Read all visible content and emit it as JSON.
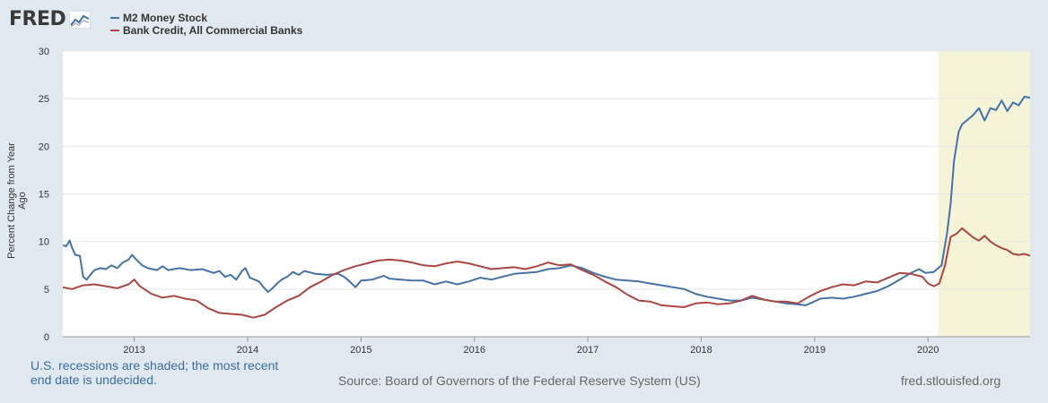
{
  "logo": {
    "text": "FRED"
  },
  "legend": [
    {
      "label": "M2 Money Stock",
      "color": "#4572a7"
    },
    {
      "label": "Bank Credit, All Commercial Banks",
      "color": "#aa4643"
    }
  ],
  "footer": {
    "recession_note": "U.S. recessions are shaded; the most recent end date is undecided.",
    "source": "Source: Board of Governors of the Federal Reserve System (US)",
    "url": "fred.stlouisfed.org"
  },
  "chart_data": {
    "type": "line",
    "title": "",
    "xlabel": "",
    "ylabel": "Percent Change from Year Ago",
    "xlim": [
      2012.37,
      2020.9
    ],
    "ylim": [
      0,
      30
    ],
    "yticks": [
      0,
      5,
      10,
      15,
      20,
      25,
      30
    ],
    "xticks": [
      {
        "value": 2013,
        "label": "2013"
      },
      {
        "value": 2014,
        "label": "2014"
      },
      {
        "value": 2015,
        "label": "2015"
      },
      {
        "value": 2016,
        "label": "2016"
      },
      {
        "value": 2017,
        "label": "2017"
      },
      {
        "value": 2018,
        "label": "2018"
      },
      {
        "value": 2019,
        "label": "2019"
      },
      {
        "value": 2020,
        "label": "2020"
      }
    ],
    "recession_shading": {
      "start": 2020.09,
      "end": 2020.9,
      "color": "#f5f3d8"
    },
    "series": [
      {
        "name": "M2 Money Stock",
        "color": "#4572a7",
        "points": [
          [
            2012.37,
            9.6
          ],
          [
            2012.4,
            9.5
          ],
          [
            2012.43,
            10.1
          ],
          [
            2012.45,
            9.4
          ],
          [
            2012.48,
            8.6
          ],
          [
            2012.52,
            8.5
          ],
          [
            2012.55,
            6.3
          ],
          [
            2012.58,
            6.0
          ],
          [
            2012.62,
            6.6
          ],
          [
            2012.65,
            7.0
          ],
          [
            2012.7,
            7.2
          ],
          [
            2012.75,
            7.1
          ],
          [
            2012.8,
            7.5
          ],
          [
            2012.85,
            7.2
          ],
          [
            2012.9,
            7.8
          ],
          [
            2012.95,
            8.1
          ],
          [
            2012.98,
            8.6
          ],
          [
            2013.02,
            8.1
          ],
          [
            2013.07,
            7.5
          ],
          [
            2013.12,
            7.2
          ],
          [
            2013.2,
            7.0
          ],
          [
            2013.25,
            7.4
          ],
          [
            2013.3,
            7.0
          ],
          [
            2013.4,
            7.2
          ],
          [
            2013.5,
            7.0
          ],
          [
            2013.6,
            7.1
          ],
          [
            2013.7,
            6.7
          ],
          [
            2013.75,
            6.9
          ],
          [
            2013.8,
            6.3
          ],
          [
            2013.85,
            6.5
          ],
          [
            2013.9,
            6.0
          ],
          [
            2013.95,
            6.9
          ],
          [
            2013.98,
            7.2
          ],
          [
            2014.02,
            6.2
          ],
          [
            2014.06,
            6.0
          ],
          [
            2014.1,
            5.8
          ],
          [
            2014.14,
            5.2
          ],
          [
            2014.18,
            4.7
          ],
          [
            2014.22,
            5.1
          ],
          [
            2014.26,
            5.6
          ],
          [
            2014.3,
            6.0
          ],
          [
            2014.35,
            6.3
          ],
          [
            2014.4,
            6.8
          ],
          [
            2014.45,
            6.5
          ],
          [
            2014.5,
            6.9
          ],
          [
            2014.6,
            6.6
          ],
          [
            2014.7,
            6.5
          ],
          [
            2014.8,
            6.6
          ],
          [
            2014.85,
            6.3
          ],
          [
            2014.9,
            5.8
          ],
          [
            2014.95,
            5.2
          ],
          [
            2015.0,
            5.9
          ],
          [
            2015.1,
            6.0
          ],
          [
            2015.2,
            6.4
          ],
          [
            2015.25,
            6.1
          ],
          [
            2015.35,
            6.0
          ],
          [
            2015.45,
            5.9
          ],
          [
            2015.55,
            5.9
          ],
          [
            2015.65,
            5.5
          ],
          [
            2015.75,
            5.8
          ],
          [
            2015.85,
            5.5
          ],
          [
            2015.95,
            5.8
          ],
          [
            2016.05,
            6.2
          ],
          [
            2016.15,
            6.0
          ],
          [
            2016.25,
            6.3
          ],
          [
            2016.35,
            6.6
          ],
          [
            2016.45,
            6.7
          ],
          [
            2016.55,
            6.8
          ],
          [
            2016.65,
            7.1
          ],
          [
            2016.75,
            7.2
          ],
          [
            2016.85,
            7.5
          ],
          [
            2016.95,
            7.2
          ],
          [
            2017.05,
            6.7
          ],
          [
            2017.15,
            6.3
          ],
          [
            2017.25,
            6.0
          ],
          [
            2017.35,
            5.9
          ],
          [
            2017.45,
            5.8
          ],
          [
            2017.55,
            5.6
          ],
          [
            2017.65,
            5.4
          ],
          [
            2017.75,
            5.2
          ],
          [
            2017.85,
            5.0
          ],
          [
            2017.95,
            4.5
          ],
          [
            2018.05,
            4.2
          ],
          [
            2018.15,
            4.0
          ],
          [
            2018.25,
            3.8
          ],
          [
            2018.35,
            3.8
          ],
          [
            2018.45,
            4.1
          ],
          [
            2018.55,
            3.9
          ],
          [
            2018.65,
            3.7
          ],
          [
            2018.75,
            3.5
          ],
          [
            2018.85,
            3.4
          ],
          [
            2018.92,
            3.3
          ],
          [
            2018.98,
            3.6
          ],
          [
            2019.05,
            4.0
          ],
          [
            2019.15,
            4.1
          ],
          [
            2019.25,
            4.0
          ],
          [
            2019.35,
            4.2
          ],
          [
            2019.45,
            4.5
          ],
          [
            2019.55,
            4.8
          ],
          [
            2019.65,
            5.3
          ],
          [
            2019.75,
            6.0
          ],
          [
            2019.85,
            6.7
          ],
          [
            2019.92,
            7.1
          ],
          [
            2019.98,
            6.7
          ],
          [
            2020.05,
            6.8
          ],
          [
            2020.12,
            7.5
          ],
          [
            2020.17,
            11.0
          ],
          [
            2020.2,
            14.0
          ],
          [
            2020.23,
            18.5
          ],
          [
            2020.27,
            21.5
          ],
          [
            2020.3,
            22.3
          ],
          [
            2020.35,
            22.8
          ],
          [
            2020.4,
            23.3
          ],
          [
            2020.45,
            24.0
          ],
          [
            2020.5,
            22.7
          ],
          [
            2020.55,
            24.0
          ],
          [
            2020.6,
            23.8
          ],
          [
            2020.65,
            24.8
          ],
          [
            2020.7,
            23.7
          ],
          [
            2020.75,
            24.6
          ],
          [
            2020.8,
            24.3
          ],
          [
            2020.85,
            25.2
          ],
          [
            2020.9,
            25.1
          ]
        ]
      },
      {
        "name": "Bank Credit, All Commercial Banks",
        "color": "#aa4643",
        "points": [
          [
            2012.37,
            5.2
          ],
          [
            2012.45,
            5.0
          ],
          [
            2012.55,
            5.4
          ],
          [
            2012.65,
            5.5
          ],
          [
            2012.75,
            5.3
          ],
          [
            2012.85,
            5.1
          ],
          [
            2012.95,
            5.5
          ],
          [
            2013.0,
            6.0
          ],
          [
            2013.05,
            5.3
          ],
          [
            2013.15,
            4.5
          ],
          [
            2013.25,
            4.1
          ],
          [
            2013.35,
            4.3
          ],
          [
            2013.45,
            4.0
          ],
          [
            2013.55,
            3.8
          ],
          [
            2013.65,
            3.0
          ],
          [
            2013.75,
            2.5
          ],
          [
            2013.85,
            2.4
          ],
          [
            2013.95,
            2.3
          ],
          [
            2014.05,
            2.0
          ],
          [
            2014.15,
            2.3
          ],
          [
            2014.25,
            3.1
          ],
          [
            2014.35,
            3.8
          ],
          [
            2014.45,
            4.3
          ],
          [
            2014.55,
            5.2
          ],
          [
            2014.65,
            5.8
          ],
          [
            2014.75,
            6.5
          ],
          [
            2014.85,
            7.0
          ],
          [
            2014.95,
            7.4
          ],
          [
            2015.05,
            7.7
          ],
          [
            2015.15,
            8.0
          ],
          [
            2015.25,
            8.1
          ],
          [
            2015.35,
            8.0
          ],
          [
            2015.45,
            7.8
          ],
          [
            2015.55,
            7.5
          ],
          [
            2015.65,
            7.4
          ],
          [
            2015.75,
            7.7
          ],
          [
            2015.85,
            7.9
          ],
          [
            2015.95,
            7.7
          ],
          [
            2016.05,
            7.4
          ],
          [
            2016.15,
            7.1
          ],
          [
            2016.25,
            7.2
          ],
          [
            2016.35,
            7.3
          ],
          [
            2016.45,
            7.1
          ],
          [
            2016.55,
            7.4
          ],
          [
            2016.65,
            7.8
          ],
          [
            2016.75,
            7.5
          ],
          [
            2016.85,
            7.6
          ],
          [
            2016.95,
            7.0
          ],
          [
            2017.05,
            6.5
          ],
          [
            2017.15,
            5.8
          ],
          [
            2017.25,
            5.2
          ],
          [
            2017.35,
            4.4
          ],
          [
            2017.45,
            3.8
          ],
          [
            2017.55,
            3.7
          ],
          [
            2017.65,
            3.3
          ],
          [
            2017.75,
            3.2
          ],
          [
            2017.85,
            3.1
          ],
          [
            2017.95,
            3.5
          ],
          [
            2018.05,
            3.6
          ],
          [
            2018.15,
            3.4
          ],
          [
            2018.25,
            3.5
          ],
          [
            2018.35,
            3.8
          ],
          [
            2018.45,
            4.3
          ],
          [
            2018.55,
            3.9
          ],
          [
            2018.65,
            3.7
          ],
          [
            2018.75,
            3.7
          ],
          [
            2018.85,
            3.5
          ],
          [
            2018.95,
            4.2
          ],
          [
            2019.05,
            4.8
          ],
          [
            2019.15,
            5.2
          ],
          [
            2019.25,
            5.5
          ],
          [
            2019.35,
            5.4
          ],
          [
            2019.45,
            5.8
          ],
          [
            2019.55,
            5.7
          ],
          [
            2019.65,
            6.2
          ],
          [
            2019.75,
            6.7
          ],
          [
            2019.85,
            6.6
          ],
          [
            2019.95,
            6.3
          ],
          [
            2020.0,
            5.6
          ],
          [
            2020.05,
            5.3
          ],
          [
            2020.1,
            5.6
          ],
          [
            2020.15,
            7.5
          ],
          [
            2020.2,
            10.5
          ],
          [
            2020.25,
            10.8
          ],
          [
            2020.3,
            11.4
          ],
          [
            2020.35,
            10.9
          ],
          [
            2020.4,
            10.4
          ],
          [
            2020.45,
            10.1
          ],
          [
            2020.5,
            10.6
          ],
          [
            2020.55,
            10.0
          ],
          [
            2020.6,
            9.6
          ],
          [
            2020.65,
            9.3
          ],
          [
            2020.7,
            9.1
          ],
          [
            2020.75,
            8.7
          ],
          [
            2020.8,
            8.6
          ],
          [
            2020.85,
            8.7
          ],
          [
            2020.9,
            8.5
          ]
        ]
      }
    ]
  }
}
